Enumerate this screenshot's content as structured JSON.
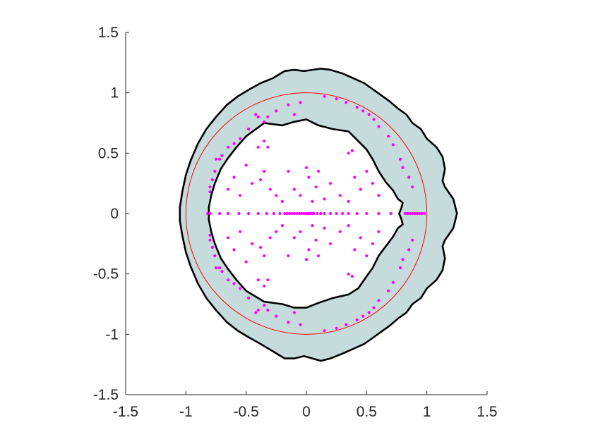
{
  "chart_data": {
    "type": "scatter",
    "title": "",
    "xlabel": "",
    "ylabel": "",
    "xlim": [
      -1.5,
      1.5
    ],
    "ylim": [
      -1.5,
      1.5
    ],
    "xticks": [
      "-1.5",
      "-1",
      "-0.5",
      "0",
      "0.5",
      "1",
      "1.5"
    ],
    "yticks": [
      "1.5",
      "1",
      "0.5",
      "0",
      "-0.5",
      "-1",
      "-1.5"
    ],
    "grid": false,
    "legend": "none",
    "colors": {
      "region_fill": "#c6dbdc",
      "boundary": "#000000",
      "unit_circle": "#ff0000",
      "points": "#ff00ff",
      "axis": "#262626"
    },
    "unit_circle": {
      "center": [
        0,
        0
      ],
      "radius": 1
    },
    "outer_boundary": [
      [
        1.25,
        0
      ],
      [
        1.22,
        0.12
      ],
      [
        1.15,
        0.22
      ],
      [
        1.13,
        0.27
      ],
      [
        1.15,
        0.37
      ],
      [
        1.13,
        0.47
      ],
      [
        1.08,
        0.55
      ],
      [
        1.0,
        0.62
      ],
      [
        0.95,
        0.7
      ],
      [
        0.88,
        0.75
      ],
      [
        0.83,
        0.82
      ],
      [
        0.76,
        0.87
      ],
      [
        0.69,
        0.93
      ],
      [
        0.62,
        0.98
      ],
      [
        0.55,
        1.03
      ],
      [
        0.48,
        1.08
      ],
      [
        0.39,
        1.12
      ],
      [
        0.3,
        1.16
      ],
      [
        0.2,
        1.19
      ],
      [
        0.12,
        1.2
      ],
      [
        0.05,
        1.19
      ],
      [
        -0.02,
        1.18
      ],
      [
        -0.1,
        1.19
      ],
      [
        -0.18,
        1.18
      ],
      [
        -0.28,
        1.12
      ],
      [
        -0.38,
        1.08
      ],
      [
        -0.47,
        1.03
      ],
      [
        -0.57,
        0.97
      ],
      [
        -0.66,
        0.9
      ],
      [
        -0.75,
        0.8
      ],
      [
        -0.83,
        0.7
      ],
      [
        -0.9,
        0.58
      ],
      [
        -0.96,
        0.44
      ],
      [
        -1.0,
        0.32
      ],
      [
        -1.03,
        0.18
      ],
      [
        -1.05,
        0.05
      ],
      [
        -1.05,
        -0.06
      ],
      [
        -1.03,
        -0.18
      ],
      [
        -1.0,
        -0.32
      ],
      [
        -0.96,
        -0.44
      ],
      [
        -0.9,
        -0.58
      ],
      [
        -0.83,
        -0.7
      ],
      [
        -0.75,
        -0.8
      ],
      [
        -0.66,
        -0.9
      ],
      [
        -0.57,
        -0.97
      ],
      [
        -0.47,
        -1.03
      ],
      [
        -0.38,
        -1.08
      ],
      [
        -0.28,
        -1.14
      ],
      [
        -0.18,
        -1.2
      ],
      [
        -0.1,
        -1.2
      ],
      [
        -0.02,
        -1.18
      ],
      [
        0.05,
        -1.2
      ],
      [
        0.12,
        -1.22
      ],
      [
        0.2,
        -1.2
      ],
      [
        0.3,
        -1.16
      ],
      [
        0.39,
        -1.12
      ],
      [
        0.48,
        -1.08
      ],
      [
        0.55,
        -1.03
      ],
      [
        0.62,
        -0.98
      ],
      [
        0.69,
        -0.93
      ],
      [
        0.76,
        -0.87
      ],
      [
        0.83,
        -0.82
      ],
      [
        0.88,
        -0.75
      ],
      [
        0.95,
        -0.7
      ],
      [
        1.0,
        -0.62
      ],
      [
        1.08,
        -0.55
      ],
      [
        1.13,
        -0.47
      ],
      [
        1.15,
        -0.37
      ],
      [
        1.13,
        -0.27
      ],
      [
        1.15,
        -0.22
      ],
      [
        1.22,
        -0.12
      ]
    ],
    "inner_boundary": [
      [
        0.77,
        0
      ],
      [
        0.79,
        0.05
      ],
      [
        0.8,
        0.09
      ],
      [
        0.76,
        0.12
      ],
      [
        0.72,
        0.19
      ],
      [
        0.66,
        0.26
      ],
      [
        0.6,
        0.35
      ],
      [
        0.55,
        0.45
      ],
      [
        0.5,
        0.53
      ],
      [
        0.43,
        0.6
      ],
      [
        0.35,
        0.68
      ],
      [
        0.22,
        0.7
      ],
      [
        0.1,
        0.73
      ],
      [
        0.0,
        0.78
      ],
      [
        -0.1,
        0.76
      ],
      [
        -0.2,
        0.73
      ],
      [
        -0.35,
        0.75
      ],
      [
        -0.5,
        0.64
      ],
      [
        -0.58,
        0.55
      ],
      [
        -0.65,
        0.46
      ],
      [
        -0.71,
        0.37
      ],
      [
        -0.76,
        0.25
      ],
      [
        -0.79,
        0.15
      ],
      [
        -0.81,
        0.05
      ],
      [
        -0.81,
        -0.05
      ],
      [
        -0.79,
        -0.15
      ],
      [
        -0.76,
        -0.25
      ],
      [
        -0.71,
        -0.37
      ],
      [
        -0.65,
        -0.46
      ],
      [
        -0.58,
        -0.55
      ],
      [
        -0.5,
        -0.64
      ],
      [
        -0.35,
        -0.73
      ],
      [
        -0.2,
        -0.75
      ],
      [
        -0.1,
        -0.78
      ],
      [
        0.0,
        -0.78
      ],
      [
        0.1,
        -0.74
      ],
      [
        0.22,
        -0.7
      ],
      [
        0.35,
        -0.67
      ],
      [
        0.43,
        -0.62
      ],
      [
        0.5,
        -0.52
      ],
      [
        0.55,
        -0.45
      ],
      [
        0.6,
        -0.35
      ],
      [
        0.66,
        -0.27
      ],
      [
        0.72,
        -0.19
      ],
      [
        0.76,
        -0.12
      ],
      [
        0.8,
        -0.09
      ],
      [
        0.79,
        -0.05
      ]
    ],
    "points": [
      [
        0.98,
        0.0
      ],
      [
        0.96,
        0.0
      ],
      [
        0.94,
        0.0
      ],
      [
        0.92,
        0.0
      ],
      [
        0.9,
        0.0
      ],
      [
        0.88,
        0.0
      ],
      [
        0.86,
        0.0
      ],
      [
        0.84,
        0.0
      ],
      [
        0.82,
        0.0
      ],
      [
        0.7,
        0.0
      ],
      [
        0.6,
        0.0
      ],
      [
        0.5,
        0.0
      ],
      [
        0.42,
        0.0
      ],
      [
        0.35,
        0.0
      ],
      [
        0.3,
        0.0
      ],
      [
        0.25,
        0.0
      ],
      [
        0.2,
        0.0
      ],
      [
        0.15,
        0.0
      ],
      [
        0.12,
        0.0
      ],
      [
        0.09,
        0.0
      ],
      [
        0.06,
        0.0
      ],
      [
        0.05,
        0.0
      ],
      [
        0.04,
        0.0
      ],
      [
        0.03,
        0.0
      ],
      [
        0.02,
        0.0
      ],
      [
        0.01,
        0.0
      ],
      [
        0.0,
        0.0
      ],
      [
        -0.02,
        0.0
      ],
      [
        -0.04,
        0.0
      ],
      [
        -0.06,
        0.0
      ],
      [
        -0.08,
        0.0
      ],
      [
        -0.1,
        0.0
      ],
      [
        -0.12,
        0.0
      ],
      [
        -0.14,
        0.0
      ],
      [
        -0.16,
        0.0
      ],
      [
        -0.18,
        0.0
      ],
      [
        -0.22,
        0.0
      ],
      [
        -0.27,
        0.0
      ],
      [
        -0.33,
        0.0
      ],
      [
        -0.4,
        0.0
      ],
      [
        -0.48,
        0.0
      ],
      [
        -0.56,
        0.0
      ],
      [
        -0.65,
        0.0
      ],
      [
        -0.72,
        0.0
      ],
      [
        -0.8,
        0.0
      ],
      [
        -0.82,
        0.0
      ],
      [
        0.15,
        0.97
      ],
      [
        0.25,
        0.95
      ],
      [
        0.33,
        0.92
      ],
      [
        0.42,
        0.88
      ],
      [
        0.47,
        0.85
      ],
      [
        0.52,
        0.82
      ],
      [
        0.56,
        0.78
      ],
      [
        0.6,
        0.72
      ],
      [
        0.68,
        0.64
      ],
      [
        0.72,
        0.57
      ],
      [
        0.78,
        0.45
      ],
      [
        0.8,
        0.38
      ],
      [
        0.85,
        0.3
      ],
      [
        0.88,
        0.22
      ],
      [
        0.15,
        -0.97
      ],
      [
        0.25,
        -0.95
      ],
      [
        0.33,
        -0.92
      ],
      [
        0.42,
        -0.88
      ],
      [
        0.47,
        -0.85
      ],
      [
        0.52,
        -0.82
      ],
      [
        0.56,
        -0.78
      ],
      [
        0.6,
        -0.72
      ],
      [
        0.68,
        -0.64
      ],
      [
        0.72,
        -0.57
      ],
      [
        0.78,
        -0.45
      ],
      [
        0.8,
        -0.38
      ],
      [
        0.85,
        -0.3
      ],
      [
        0.88,
        -0.22
      ],
      [
        -0.05,
        0.92
      ],
      [
        -0.15,
        0.9
      ],
      [
        -0.1,
        0.82
      ],
      [
        -0.25,
        0.85
      ],
      [
        -0.32,
        0.8
      ],
      [
        -0.35,
        0.76
      ],
      [
        -0.4,
        0.8
      ],
      [
        -0.42,
        0.82
      ],
      [
        -0.48,
        0.7
      ],
      [
        -0.55,
        0.62
      ],
      [
        -0.6,
        0.58
      ],
      [
        -0.65,
        0.55
      ],
      [
        -0.7,
        0.48
      ],
      [
        -0.72,
        0.45
      ],
      [
        -0.75,
        0.45
      ],
      [
        -0.76,
        0.35
      ],
      [
        -0.78,
        0.28
      ],
      [
        -0.8,
        0.22
      ],
      [
        -0.8,
        0.18
      ],
      [
        -0.05,
        -0.92
      ],
      [
        -0.15,
        -0.9
      ],
      [
        -0.1,
        -0.82
      ],
      [
        -0.25,
        -0.85
      ],
      [
        -0.32,
        -0.8
      ],
      [
        -0.35,
        -0.76
      ],
      [
        -0.4,
        -0.8
      ],
      [
        -0.42,
        -0.82
      ],
      [
        -0.48,
        -0.7
      ],
      [
        -0.55,
        -0.62
      ],
      [
        -0.6,
        -0.58
      ],
      [
        -0.65,
        -0.55
      ],
      [
        -0.7,
        -0.48
      ],
      [
        -0.72,
        -0.45
      ],
      [
        -0.75,
        -0.45
      ],
      [
        -0.76,
        -0.35
      ],
      [
        -0.78,
        -0.28
      ],
      [
        -0.8,
        -0.22
      ],
      [
        -0.8,
        -0.18
      ],
      [
        -0.4,
        0.55
      ],
      [
        -0.35,
        0.6
      ],
      [
        -0.32,
        0.55
      ],
      [
        -0.5,
        0.4
      ],
      [
        -0.6,
        0.3
      ],
      [
        -0.65,
        0.2
      ],
      [
        -0.55,
        0.15
      ],
      [
        -0.45,
        0.25
      ],
      [
        -0.38,
        0.28
      ],
      [
        -0.35,
        0.35
      ],
      [
        -0.3,
        0.2
      ],
      [
        -0.25,
        0.15
      ],
      [
        -0.2,
        0.1
      ],
      [
        -0.15,
        0.35
      ],
      [
        -0.1,
        0.2
      ],
      [
        -0.05,
        0.15
      ],
      [
        0.0,
        0.38
      ],
      [
        0.02,
        0.3
      ],
      [
        0.05,
        0.1
      ],
      [
        0.08,
        0.22
      ],
      [
        0.1,
        0.35
      ],
      [
        0.15,
        0.12
      ],
      [
        0.2,
        0.25
      ],
      [
        0.28,
        0.15
      ],
      [
        0.35,
        0.1
      ],
      [
        0.4,
        0.3
      ],
      [
        0.45,
        0.2
      ],
      [
        0.5,
        0.35
      ],
      [
        0.55,
        0.25
      ],
      [
        0.6,
        0.15
      ],
      [
        0.35,
        0.5
      ],
      [
        0.38,
        0.52
      ],
      [
        -0.4,
        -0.55
      ],
      [
        -0.35,
        -0.6
      ],
      [
        -0.32,
        -0.55
      ],
      [
        -0.5,
        -0.4
      ],
      [
        -0.6,
        -0.3
      ],
      [
        -0.65,
        -0.2
      ],
      [
        -0.55,
        -0.15
      ],
      [
        -0.45,
        -0.25
      ],
      [
        -0.38,
        -0.28
      ],
      [
        -0.35,
        -0.35
      ],
      [
        -0.3,
        -0.2
      ],
      [
        -0.25,
        -0.15
      ],
      [
        -0.2,
        -0.1
      ],
      [
        -0.15,
        -0.35
      ],
      [
        -0.1,
        -0.2
      ],
      [
        -0.05,
        -0.15
      ],
      [
        0.0,
        -0.38
      ],
      [
        0.02,
        -0.3
      ],
      [
        0.05,
        -0.1
      ],
      [
        0.08,
        -0.22
      ],
      [
        0.1,
        -0.35
      ],
      [
        0.15,
        -0.12
      ],
      [
        0.2,
        -0.25
      ],
      [
        0.28,
        -0.15
      ],
      [
        0.35,
        -0.1
      ],
      [
        0.4,
        -0.3
      ],
      [
        0.45,
        -0.2
      ],
      [
        0.5,
        -0.35
      ],
      [
        0.55,
        -0.25
      ],
      [
        0.6,
        -0.15
      ],
      [
        0.35,
        -0.5
      ],
      [
        0.38,
        -0.52
      ]
    ]
  }
}
